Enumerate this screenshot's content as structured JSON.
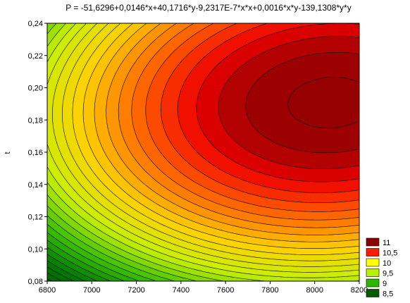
{
  "chart_data": {
    "type": "contour",
    "title": "P = -51,6296+0,0146*x+40,1716*y-9,2317E-7*x*x+0,0016*x*y-139,1308*y*y",
    "xlabel": "",
    "ylabel": "t",
    "xlim": [
      6800,
      8200
    ],
    "ylim": [
      0.08,
      0.24
    ],
    "x_ticks": [
      "6800",
      "7000",
      "7200",
      "7400",
      "7600",
      "7800",
      "8000",
      "8200"
    ],
    "y_ticks": [
      "0,08",
      "0,10",
      "0,12",
      "0,14",
      "0,16",
      "0,18",
      "0,20",
      "0,22",
      "0,24"
    ],
    "coefficients": {
      "const": -51.6296,
      "x": 0.0146,
      "y": 40.1716,
      "xx": -9.2317e-07,
      "xy": 0.0016,
      "yy": -139.1308
    },
    "grid": false,
    "legend_position": "bottom-right",
    "legend": [
      {
        "label": "11",
        "color": "#8b0000"
      },
      {
        "label": "10,5",
        "color": "#ff1a00"
      },
      {
        "label": "10",
        "color": "#ffff00"
      },
      {
        "label": "9,5",
        "color": "#b8f000"
      },
      {
        "label": "9",
        "color": "#2bb600"
      },
      {
        "label": "8,5",
        "color": "#005a00"
      }
    ],
    "color_scale": [
      {
        "value": 7.6,
        "color": "#003c00"
      },
      {
        "value": 8.5,
        "color": "#007a00"
      },
      {
        "value": 9.0,
        "color": "#3cc000"
      },
      {
        "value": 9.5,
        "color": "#c8f000"
      },
      {
        "value": 10.0,
        "color": "#ffd000"
      },
      {
        "value": 10.5,
        "color": "#ff5a00"
      },
      {
        "value": 10.8,
        "color": "#ee0000"
      },
      {
        "value": 11.0,
        "color": "#a00000"
      },
      {
        "value": 11.3,
        "color": "#8b0000"
      }
    ],
    "contour_levels": {
      "start": 7.6,
      "end": 11.25,
      "step": 0.1
    }
  }
}
